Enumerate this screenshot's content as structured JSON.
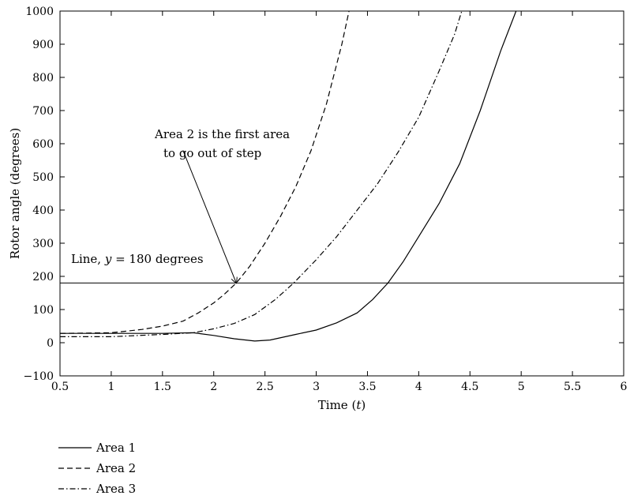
{
  "chart_data": {
    "type": "line",
    "title": "",
    "xlabel": "Time (",
    "xlabel_var": "t",
    "xlabel_close": ")",
    "ylabel": "Rotor angle (degrees)",
    "xlim": [
      0.5,
      6
    ],
    "ylim": [
      -100,
      1000
    ],
    "xticks": [
      0.5,
      1,
      1.5,
      2,
      2.5,
      3,
      3.5,
      4,
      4.5,
      5,
      5.5,
      6
    ],
    "yticks": [
      -100,
      0,
      100,
      200,
      300,
      400,
      500,
      600,
      700,
      800,
      900,
      1000
    ],
    "xtick_labels": [
      "0.5",
      "1",
      "1.5",
      "2",
      "2.5",
      "3",
      "3.5",
      "4",
      "4.5",
      "5",
      "5.5",
      "6"
    ],
    "ytick_labels": [
      "−100",
      "0",
      "100",
      "200",
      "300",
      "400",
      "500",
      "600",
      "700",
      "800",
      "900",
      "1000"
    ],
    "grid": false,
    "legend_position": "below-left",
    "series": [
      {
        "name": "Area 1",
        "style": "solid",
        "x": [
          0.5,
          1.0,
          1.5,
          1.8,
          2.0,
          2.2,
          2.4,
          2.55,
          2.8,
          3.0,
          3.2,
          3.4,
          3.55,
          3.7,
          3.85,
          4.0,
          4.2,
          4.4,
          4.6,
          4.8,
          4.95
        ],
        "y": [
          28,
          28,
          28,
          30,
          22,
          12,
          5,
          8,
          25,
          38,
          60,
          90,
          130,
          180,
          245,
          320,
          420,
          540,
          700,
          880,
          1000
        ]
      },
      {
        "name": "Area 2",
        "style": "dashed",
        "x": [
          0.5,
          1.0,
          1.3,
          1.5,
          1.7,
          1.85,
          2.0,
          2.1,
          2.22,
          2.35,
          2.5,
          2.65,
          2.8,
          2.95,
          3.1,
          3.25,
          3.32
        ],
        "y": [
          28,
          30,
          40,
          50,
          65,
          90,
          120,
          145,
          180,
          230,
          300,
          380,
          470,
          580,
          720,
          900,
          1000
        ]
      },
      {
        "name": "Area 3",
        "style": "dashdot",
        "x": [
          0.5,
          1.0,
          1.5,
          1.8,
          2.0,
          2.2,
          2.4,
          2.6,
          2.78,
          3.0,
          3.2,
          3.4,
          3.6,
          3.8,
          4.0,
          4.2,
          4.35,
          4.42
        ],
        "y": [
          18,
          18,
          25,
          30,
          42,
          58,
          85,
          130,
          180,
          250,
          320,
          400,
          480,
          575,
          680,
          820,
          930,
          1000
        ]
      }
    ],
    "reference_line": {
      "y": 180,
      "label_prefix": "Line, ",
      "label_var": "y",
      "label_suffix": " = 180 degrees"
    },
    "annotation": {
      "line1": "Area 2 is the first area",
      "line2": "to go out of step",
      "arrow_target": {
        "x": 2.22,
        "y": 180
      },
      "arrow_origin": {
        "x": 1.7,
        "y": 580
      }
    }
  }
}
